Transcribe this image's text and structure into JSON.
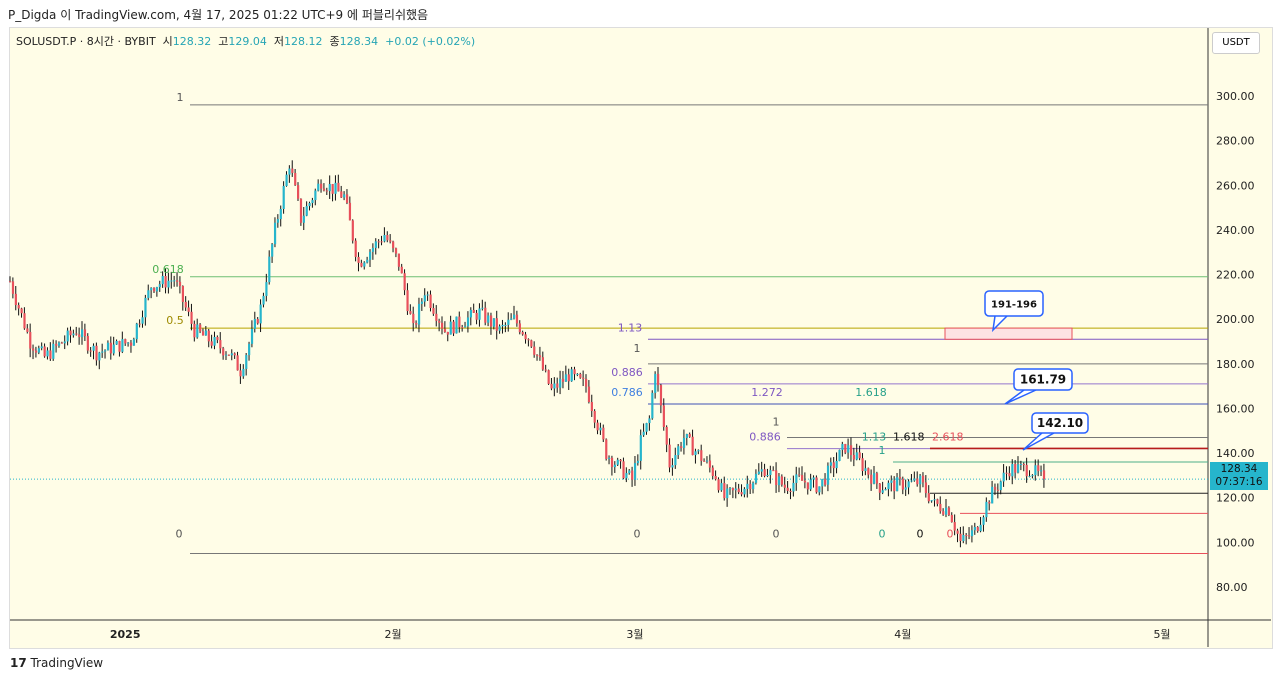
{
  "header": {
    "published": "P_Digda 이 TradingView.com, 4월 17, 2025 01:22 UTC+9 에 퍼블리쉬했음"
  },
  "legend": {
    "symbol": "SOLUSDT.P · 8시간 · BYBIT",
    "o_label": "시",
    "o": "128.32",
    "h_label": "고",
    "h": "129.04",
    "l_label": "저",
    "l": "128.12",
    "c_label": "종",
    "c": "128.34",
    "change": "+0.02 (+0.02%)"
  },
  "currency": "USDT",
  "current": {
    "price": "128.34",
    "countdown": "07:37:16"
  },
  "footer": {
    "brand": "TradingView"
  },
  "colors": {
    "up": "#26b5cc",
    "down": "#e8505b",
    "bg": "#fffde7"
  },
  "chart_data": {
    "type": "candlestick",
    "y_ticks": [
      "300.00",
      "280.00",
      "260.00",
      "240.00",
      "220.00",
      "200.00",
      "180.00",
      "160.00",
      "140.00",
      "120.00",
      "100.00",
      "80.00"
    ],
    "ylim": [
      80,
      300
    ],
    "x_ticks": [
      {
        "label": "2025",
        "candle": 40
      },
      {
        "label": "2월",
        "candle": 133
      },
      {
        "label": "3월",
        "candle": 217
      },
      {
        "label": "4월",
        "candle": 310
      },
      {
        "label": "5월",
        "candle": 400
      }
    ],
    "price_path": [
      [
        0,
        217
      ],
      [
        7,
        190
      ],
      [
        12,
        183
      ],
      [
        23,
        195
      ],
      [
        30,
        185
      ],
      [
        42,
        190
      ],
      [
        49,
        215
      ],
      [
        57,
        218
      ],
      [
        64,
        195
      ],
      [
        76,
        185
      ],
      [
        80,
        177
      ],
      [
        87,
        205
      ],
      [
        92,
        240
      ],
      [
        97,
        270
      ],
      [
        101,
        245
      ],
      [
        108,
        262
      ],
      [
        116,
        255
      ],
      [
        121,
        225
      ],
      [
        130,
        238
      ],
      [
        135,
        225
      ],
      [
        140,
        195
      ],
      [
        144,
        213
      ],
      [
        151,
        195
      ],
      [
        163,
        203
      ],
      [
        170,
        195
      ],
      [
        175,
        200
      ],
      [
        181,
        190
      ],
      [
        188,
        168
      ],
      [
        194,
        175
      ],
      [
        200,
        170
      ],
      [
        207,
        140
      ],
      [
        212,
        133
      ],
      [
        216,
        128
      ],
      [
        219,
        145
      ],
      [
        222,
        155
      ],
      [
        224,
        178
      ],
      [
        226,
        160
      ],
      [
        229,
        135
      ],
      [
        234,
        147
      ],
      [
        240,
        138
      ],
      [
        245,
        130
      ],
      [
        248,
        120
      ],
      [
        255,
        125
      ],
      [
        262,
        133
      ],
      [
        269,
        125
      ],
      [
        274,
        128
      ],
      [
        281,
        125
      ],
      [
        290,
        143
      ],
      [
        295,
        136
      ],
      [
        302,
        125
      ],
      [
        316,
        127
      ],
      [
        321,
        117
      ],
      [
        326,
        115
      ],
      [
        330,
        100
      ],
      [
        335,
        105
      ],
      [
        340,
        120
      ],
      [
        347,
        133
      ],
      [
        354,
        133
      ],
      [
        359,
        128.34
      ]
    ],
    "fib_labels": [
      {
        "text": "1",
        "price": 296,
        "color": "#555"
      },
      {
        "text": "0.618",
        "price": 219,
        "color": "#4caf50"
      },
      {
        "text": "0.5",
        "price": 196,
        "color": "#9e8a00"
      },
      {
        "text": "0",
        "price": 95,
        "color": "#555"
      },
      {
        "text": "1.13",
        "price": 191,
        "color": "#7e57c2"
      },
      {
        "text": "1",
        "price": 180,
        "color": "#555"
      },
      {
        "text": "0.886",
        "price": 171,
        "color": "#7e57c2"
      },
      {
        "text": "0.786",
        "price": 162,
        "color": "#3f7fe0"
      },
      {
        "text": "1.272",
        "price": 162,
        "color": "#7e57c2"
      },
      {
        "text": "1.618",
        "price": 162,
        "color": "#26a08a"
      },
      {
        "text": "1",
        "price": 147,
        "color": "#555"
      },
      {
        "text": "0.886",
        "price": 142,
        "color": "#7e57c2"
      },
      {
        "text": "1.13",
        "price": 142,
        "color": "#26a08a"
      },
      {
        "text": "1.618",
        "price": 142,
        "color": "#111"
      },
      {
        "text": "2.618",
        "price": 142,
        "color": "#e8505b"
      },
      {
        "text": "1",
        "price": 136,
        "color": "#26a08a"
      },
      {
        "text": "0",
        "price": 95,
        "color": "#555"
      },
      {
        "text": "0",
        "price": 95,
        "color": "#555"
      },
      {
        "text": "0",
        "price": 95,
        "color": "#26a08a"
      },
      {
        "text": "0",
        "price": 95,
        "color": "#111"
      },
      {
        "text": "0",
        "price": 95,
        "color": "#e8505b"
      }
    ],
    "callouts": [
      {
        "text": "191-196"
      },
      {
        "text": "161.79"
      },
      {
        "text": "142.10"
      }
    ]
  }
}
